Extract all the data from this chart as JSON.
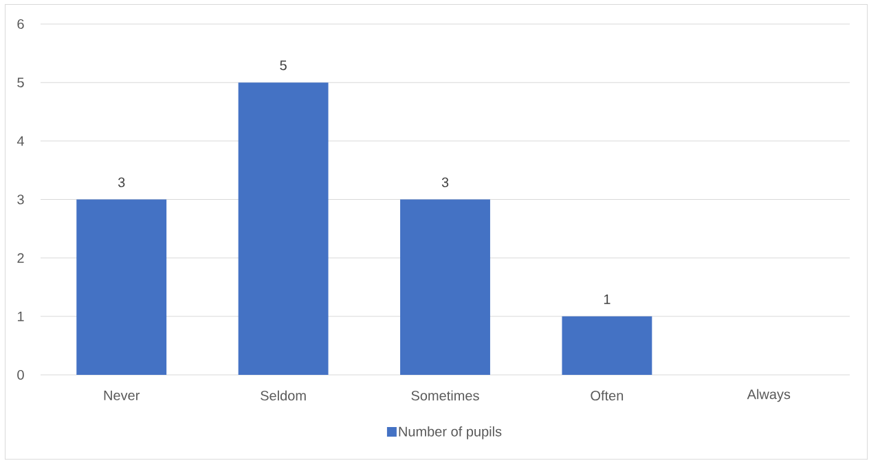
{
  "chart_data": {
    "type": "bar",
    "categories": [
      "Never",
      "Seldom",
      "Sometimes",
      "Often",
      "Always"
    ],
    "series": [
      {
        "name": "Number of pupils",
        "color": "#4472c4",
        "values": [
          3,
          5,
          3,
          1,
          null
        ]
      }
    ],
    "ylim": [
      0,
      6
    ],
    "yticks": [
      0,
      1,
      2,
      3,
      4,
      5,
      6
    ],
    "grid": "y",
    "legend": "bottom",
    "data_labels": true
  }
}
